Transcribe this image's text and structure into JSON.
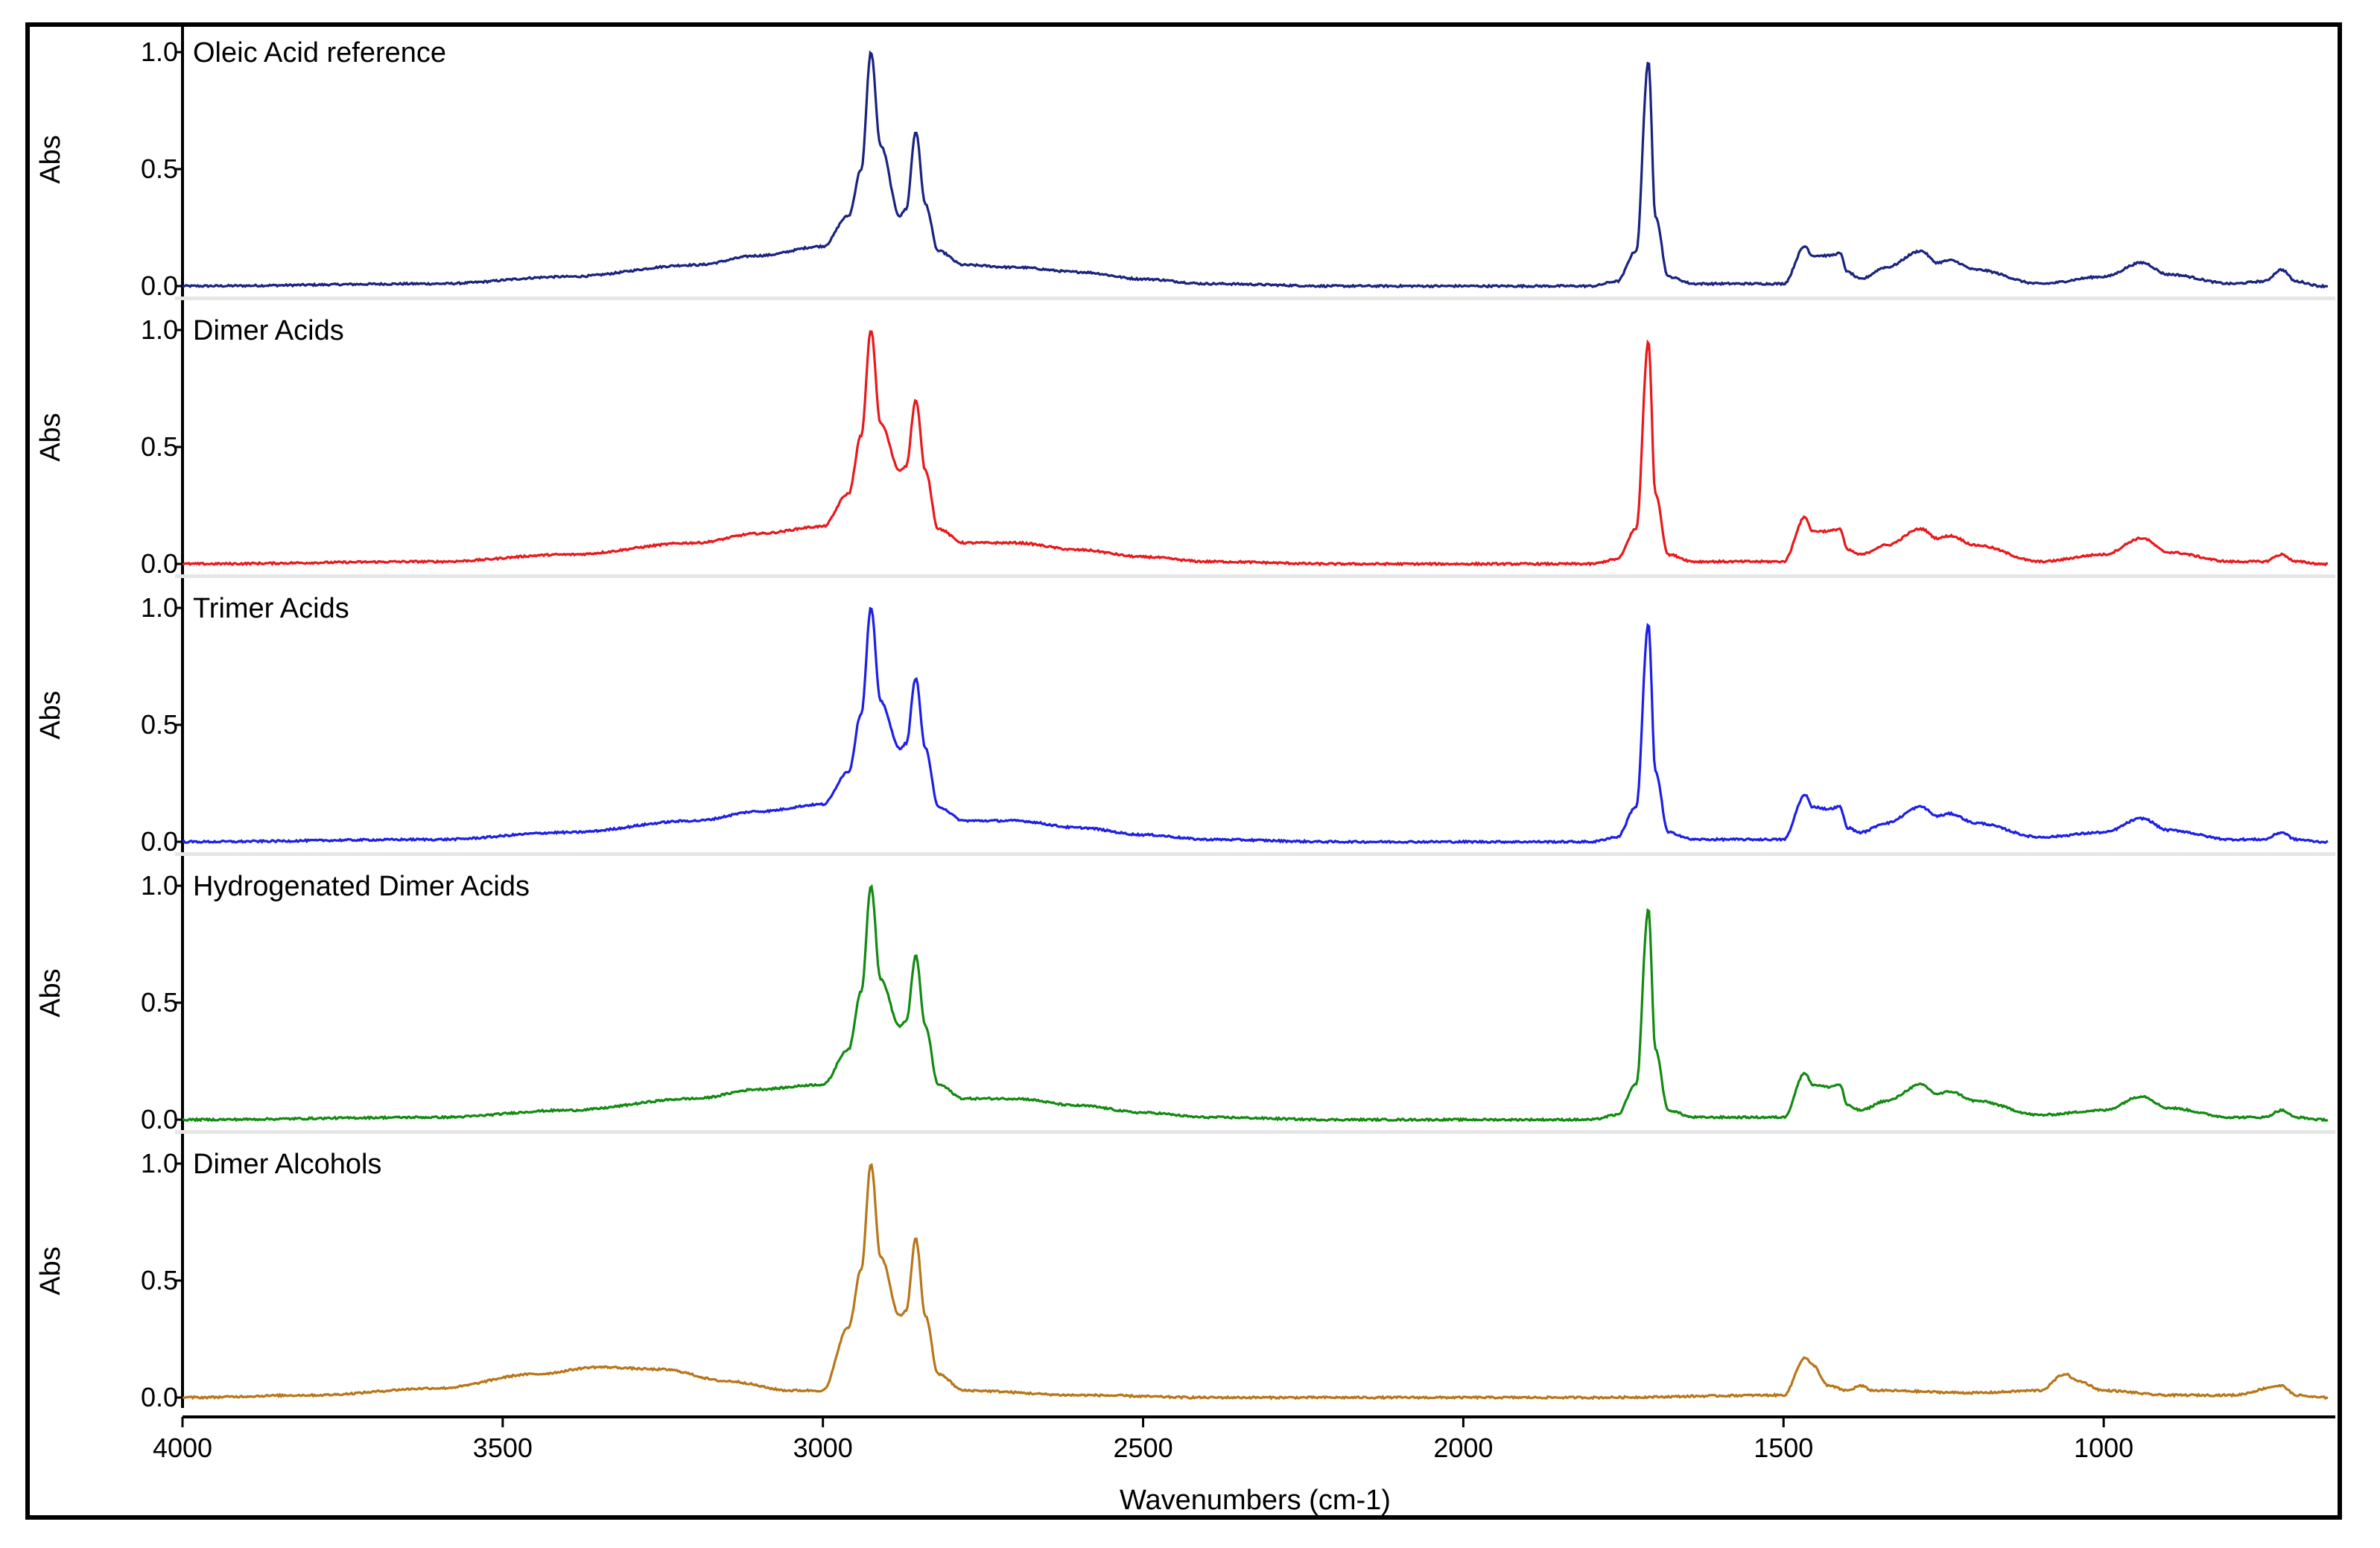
{
  "chart_data": {
    "type": "line",
    "xlabel": "Wavenumbers (cm-1)",
    "xlim": [
      4000,
      650
    ],
    "x_ticks": [
      4000,
      3500,
      3000,
      2500,
      2000,
      1500,
      1000
    ],
    "ylabel": "Abs",
    "ylim": [
      0,
      1.0
    ],
    "y_tick_labels": [
      "0.0",
      "0.5",
      "1.0"
    ],
    "series": [
      {
        "name": "Oleic Acid reference",
        "color": "#1a237e",
        "baseline": [
          [
            4000,
            0.0
          ],
          [
            3600,
            0.01
          ],
          [
            3400,
            0.04
          ],
          [
            3200,
            0.09
          ],
          [
            3100,
            0.13
          ],
          [
            3000,
            0.17
          ],
          [
            2960,
            0.3
          ],
          [
            2940,
            0.5
          ],
          [
            2925,
            1.0
          ],
          [
            2910,
            0.6
          ],
          [
            2880,
            0.3
          ],
          [
            2870,
            0.33
          ],
          [
            2855,
            0.66
          ],
          [
            2840,
            0.35
          ],
          [
            2820,
            0.15
          ],
          [
            2780,
            0.09
          ],
          [
            2700,
            0.08
          ],
          [
            2600,
            0.06
          ],
          [
            2500,
            0.03
          ],
          [
            2400,
            0.01
          ],
          [
            2200,
            0.0
          ],
          [
            1800,
            0.0
          ],
          [
            1760,
            0.02
          ],
          [
            1730,
            0.15
          ],
          [
            1711,
            0.96
          ],
          [
            1700,
            0.3
          ],
          [
            1680,
            0.04
          ],
          [
            1640,
            0.01
          ],
          [
            1500,
            0.01
          ],
          [
            1466,
            0.17
          ],
          [
            1455,
            0.13
          ],
          [
            1430,
            0.13
          ],
          [
            1412,
            0.14
          ],
          [
            1400,
            0.06
          ],
          [
            1380,
            0.03
          ],
          [
            1340,
            0.08
          ],
          [
            1285,
            0.15
          ],
          [
            1260,
            0.1
          ],
          [
            1240,
            0.11
          ],
          [
            1200,
            0.07
          ],
          [
            1100,
            0.01
          ],
          [
            1000,
            0.04
          ],
          [
            940,
            0.1
          ],
          [
            900,
            0.05
          ],
          [
            800,
            0.01
          ],
          [
            750,
            0.02
          ],
          [
            722,
            0.07
          ],
          [
            700,
            0.02
          ],
          [
            660,
            0.0
          ]
        ],
        "note": ""
      },
      {
        "name": "Dimer Acids",
        "color": "#e8191c",
        "baseline": [
          [
            4000,
            0.0
          ],
          [
            3600,
            0.01
          ],
          [
            3400,
            0.04
          ],
          [
            3200,
            0.09
          ],
          [
            3100,
            0.13
          ],
          [
            3000,
            0.16
          ],
          [
            2960,
            0.3
          ],
          [
            2940,
            0.55
          ],
          [
            2925,
            1.0
          ],
          [
            2910,
            0.6
          ],
          [
            2880,
            0.4
          ],
          [
            2870,
            0.42
          ],
          [
            2855,
            0.7
          ],
          [
            2840,
            0.4
          ],
          [
            2820,
            0.15
          ],
          [
            2780,
            0.09
          ],
          [
            2700,
            0.09
          ],
          [
            2600,
            0.06
          ],
          [
            2500,
            0.03
          ],
          [
            2400,
            0.01
          ],
          [
            2200,
            0.0
          ],
          [
            1800,
            0.0
          ],
          [
            1760,
            0.02
          ],
          [
            1730,
            0.15
          ],
          [
            1711,
            0.95
          ],
          [
            1700,
            0.3
          ],
          [
            1680,
            0.04
          ],
          [
            1640,
            0.01
          ],
          [
            1500,
            0.01
          ],
          [
            1466,
            0.2
          ],
          [
            1455,
            0.14
          ],
          [
            1430,
            0.14
          ],
          [
            1412,
            0.15
          ],
          [
            1400,
            0.06
          ],
          [
            1380,
            0.04
          ],
          [
            1340,
            0.08
          ],
          [
            1285,
            0.15
          ],
          [
            1260,
            0.11
          ],
          [
            1240,
            0.12
          ],
          [
            1200,
            0.08
          ],
          [
            1100,
            0.01
          ],
          [
            1000,
            0.04
          ],
          [
            940,
            0.11
          ],
          [
            900,
            0.05
          ],
          [
            800,
            0.01
          ],
          [
            750,
            0.01
          ],
          [
            722,
            0.04
          ],
          [
            700,
            0.01
          ],
          [
            660,
            0.0
          ]
        ],
        "note": ""
      },
      {
        "name": "Trimer Acids",
        "color": "#1e1ee6",
        "baseline": [
          [
            4000,
            0.0
          ],
          [
            3600,
            0.01
          ],
          [
            3400,
            0.04
          ],
          [
            3200,
            0.09
          ],
          [
            3100,
            0.13
          ],
          [
            3000,
            0.16
          ],
          [
            2960,
            0.3
          ],
          [
            2940,
            0.55
          ],
          [
            2925,
            1.0
          ],
          [
            2910,
            0.6
          ],
          [
            2880,
            0.4
          ],
          [
            2870,
            0.42
          ],
          [
            2855,
            0.7
          ],
          [
            2840,
            0.4
          ],
          [
            2820,
            0.15
          ],
          [
            2780,
            0.09
          ],
          [
            2700,
            0.09
          ],
          [
            2600,
            0.06
          ],
          [
            2500,
            0.03
          ],
          [
            2400,
            0.01
          ],
          [
            2200,
            0.0
          ],
          [
            1800,
            0.0
          ],
          [
            1760,
            0.02
          ],
          [
            1730,
            0.15
          ],
          [
            1711,
            0.93
          ],
          [
            1700,
            0.3
          ],
          [
            1680,
            0.04
          ],
          [
            1640,
            0.01
          ],
          [
            1500,
            0.01
          ],
          [
            1466,
            0.2
          ],
          [
            1455,
            0.15
          ],
          [
            1430,
            0.14
          ],
          [
            1412,
            0.15
          ],
          [
            1400,
            0.06
          ],
          [
            1380,
            0.04
          ],
          [
            1340,
            0.08
          ],
          [
            1285,
            0.15
          ],
          [
            1260,
            0.11
          ],
          [
            1240,
            0.12
          ],
          [
            1200,
            0.08
          ],
          [
            1100,
            0.02
          ],
          [
            1000,
            0.04
          ],
          [
            940,
            0.1
          ],
          [
            900,
            0.05
          ],
          [
            800,
            0.01
          ],
          [
            750,
            0.01
          ],
          [
            722,
            0.04
          ],
          [
            700,
            0.01
          ],
          [
            660,
            0.0
          ]
        ],
        "note": ""
      },
      {
        "name": "Hydrogenated Dimer Acids",
        "color": "#138a13",
        "baseline": [
          [
            4000,
            0.0
          ],
          [
            3600,
            0.01
          ],
          [
            3400,
            0.04
          ],
          [
            3200,
            0.09
          ],
          [
            3100,
            0.13
          ],
          [
            3000,
            0.15
          ],
          [
            2960,
            0.3
          ],
          [
            2940,
            0.55
          ],
          [
            2925,
            1.0
          ],
          [
            2910,
            0.6
          ],
          [
            2880,
            0.4
          ],
          [
            2870,
            0.42
          ],
          [
            2855,
            0.7
          ],
          [
            2840,
            0.4
          ],
          [
            2820,
            0.15
          ],
          [
            2780,
            0.09
          ],
          [
            2700,
            0.09
          ],
          [
            2600,
            0.06
          ],
          [
            2500,
            0.03
          ],
          [
            2400,
            0.01
          ],
          [
            2200,
            0.0
          ],
          [
            1800,
            0.0
          ],
          [
            1760,
            0.02
          ],
          [
            1730,
            0.15
          ],
          [
            1711,
            0.9
          ],
          [
            1700,
            0.3
          ],
          [
            1680,
            0.04
          ],
          [
            1640,
            0.01
          ],
          [
            1500,
            0.01
          ],
          [
            1466,
            0.2
          ],
          [
            1455,
            0.15
          ],
          [
            1430,
            0.14
          ],
          [
            1412,
            0.15
          ],
          [
            1400,
            0.06
          ],
          [
            1380,
            0.04
          ],
          [
            1340,
            0.08
          ],
          [
            1285,
            0.15
          ],
          [
            1260,
            0.11
          ],
          [
            1240,
            0.12
          ],
          [
            1200,
            0.08
          ],
          [
            1100,
            0.02
          ],
          [
            1000,
            0.04
          ],
          [
            940,
            0.1
          ],
          [
            900,
            0.05
          ],
          [
            800,
            0.01
          ],
          [
            750,
            0.01
          ],
          [
            722,
            0.04
          ],
          [
            700,
            0.01
          ],
          [
            660,
            0.0
          ]
        ],
        "note": ""
      },
      {
        "name": "Dimer Alcohols",
        "color": "#b8761a",
        "baseline": [
          [
            4000,
            0.0
          ],
          [
            3800,
            0.01
          ],
          [
            3600,
            0.04
          ],
          [
            3450,
            0.1
          ],
          [
            3350,
            0.13
          ],
          [
            3250,
            0.12
          ],
          [
            3150,
            0.07
          ],
          [
            3050,
            0.03
          ],
          [
            3000,
            0.03
          ],
          [
            2960,
            0.3
          ],
          [
            2940,
            0.55
          ],
          [
            2925,
            1.0
          ],
          [
            2910,
            0.6
          ],
          [
            2880,
            0.35
          ],
          [
            2870,
            0.37
          ],
          [
            2855,
            0.68
          ],
          [
            2840,
            0.35
          ],
          [
            2820,
            0.1
          ],
          [
            2780,
            0.03
          ],
          [
            2600,
            0.01
          ],
          [
            2400,
            0.0
          ],
          [
            1800,
            0.0
          ],
          [
            1500,
            0.01
          ],
          [
            1466,
            0.17
          ],
          [
            1455,
            0.14
          ],
          [
            1430,
            0.05
          ],
          [
            1400,
            0.03
          ],
          [
            1380,
            0.05
          ],
          [
            1360,
            0.03
          ],
          [
            1200,
            0.02
          ],
          [
            1100,
            0.03
          ],
          [
            1060,
            0.1
          ],
          [
            1040,
            0.07
          ],
          [
            1000,
            0.03
          ],
          [
            900,
            0.01
          ],
          [
            800,
            0.01
          ],
          [
            722,
            0.05
          ],
          [
            700,
            0.01
          ],
          [
            660,
            0.0
          ]
        ],
        "note": ""
      }
    ],
    "legend": "panel-labels-top-left",
    "grid": false
  }
}
